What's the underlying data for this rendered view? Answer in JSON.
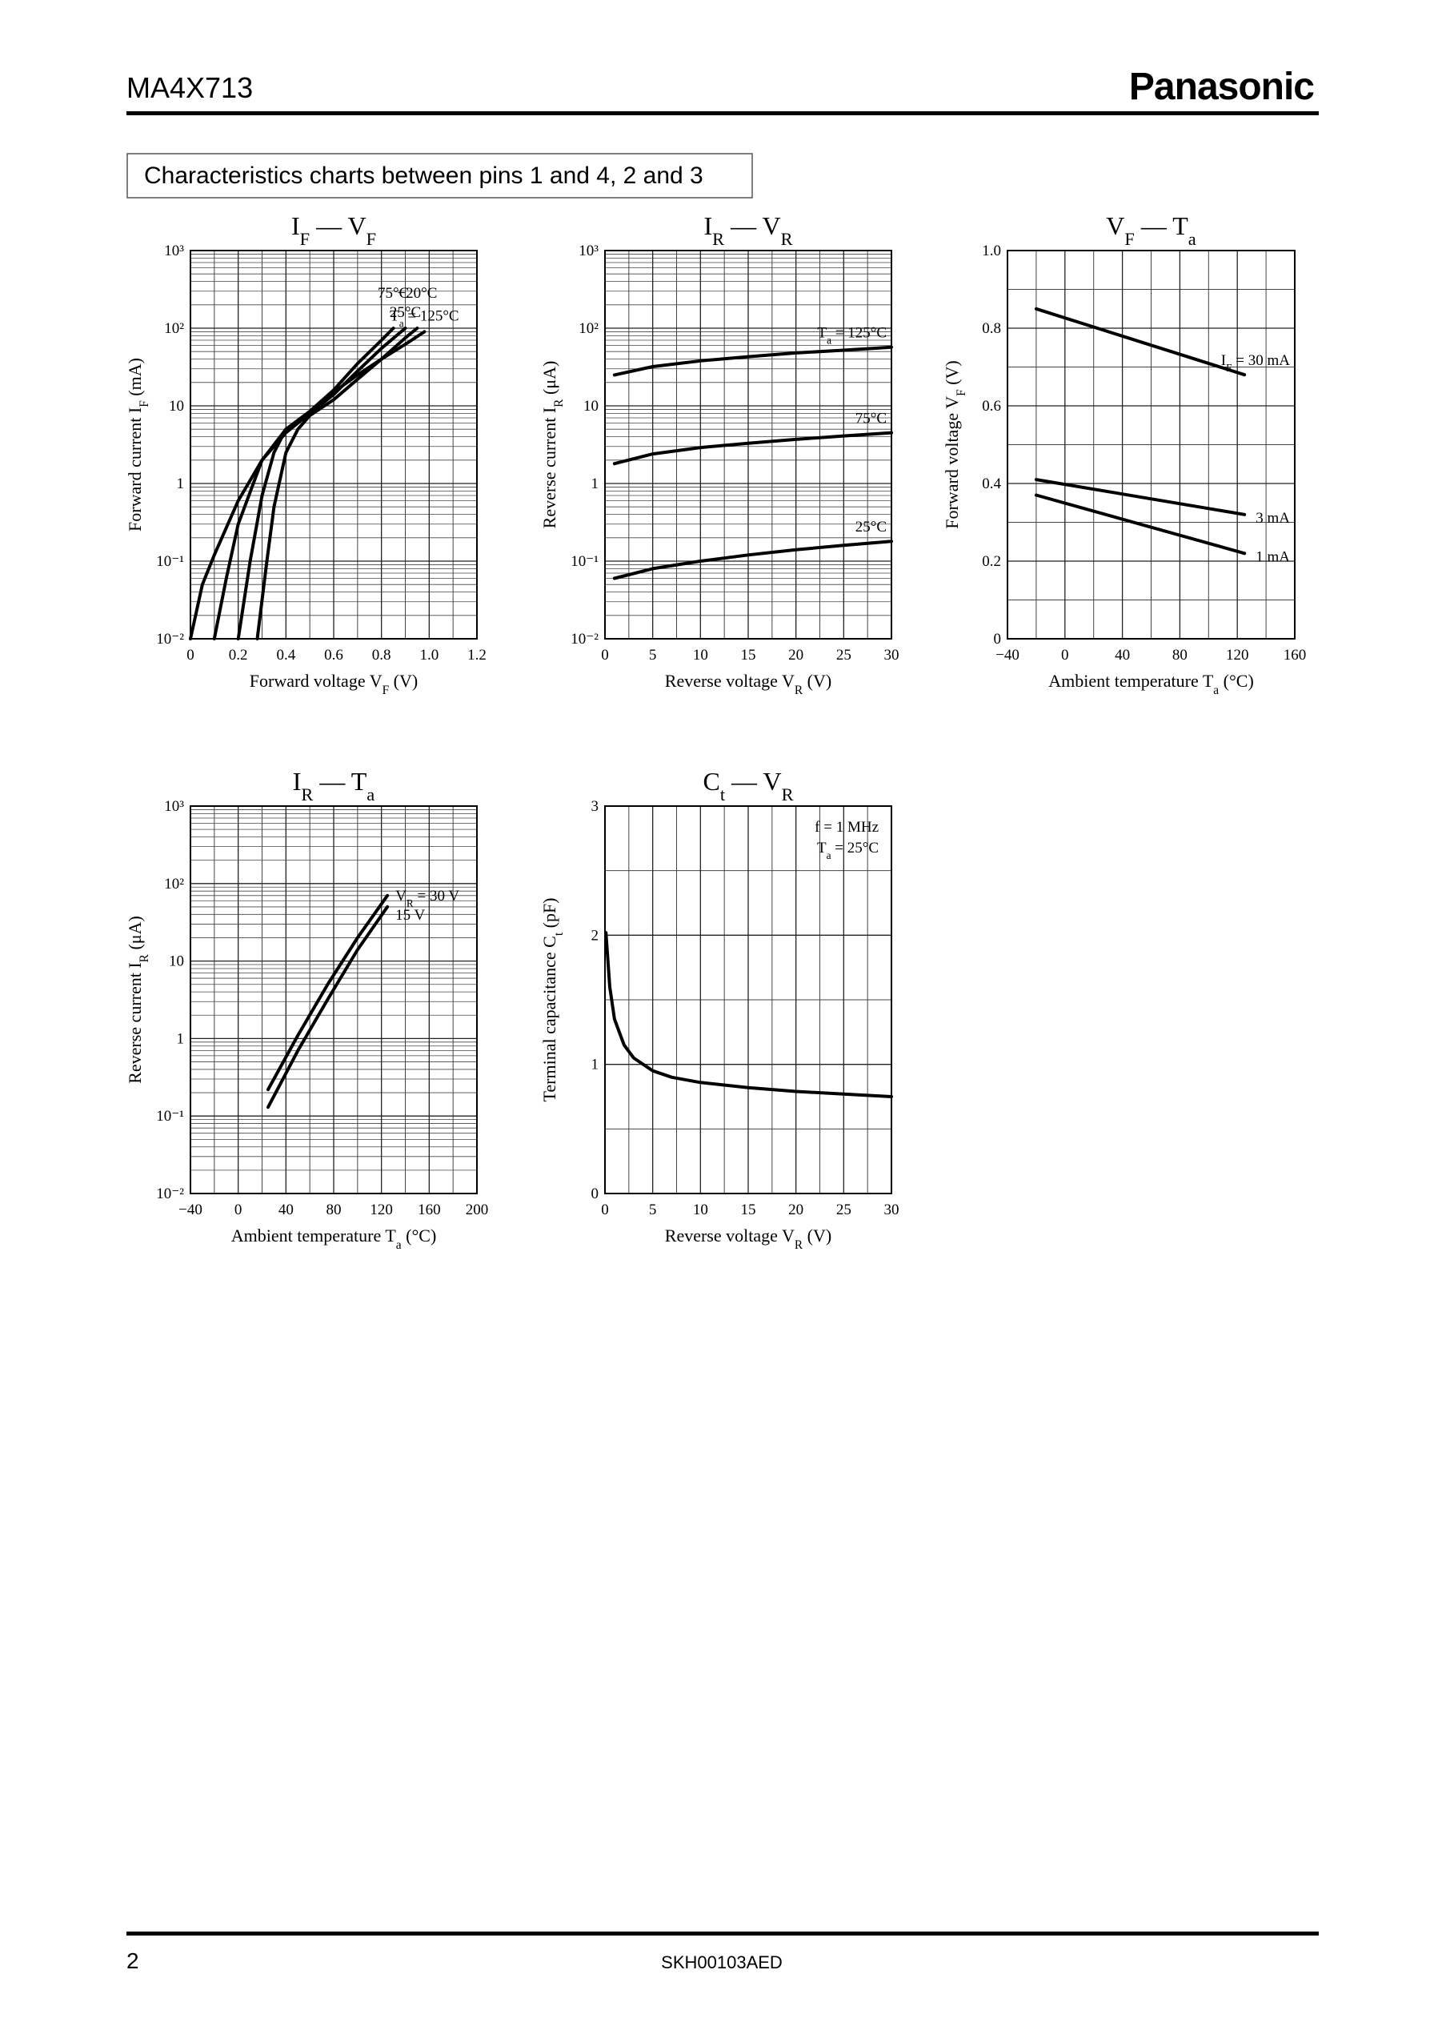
{
  "header": {
    "part": "MA4X713",
    "brand": "Panasonic"
  },
  "section": {
    "title": "Characteristics charts between pins 1 and 4, 2 and 3"
  },
  "chart_data": [
    {
      "type": "line",
      "title": [
        "I",
        "F",
        " — V",
        "F"
      ],
      "xlabel": [
        "Forward voltage  V",
        "F",
        "  (V)"
      ],
      "ylabel": [
        "Forward current  I",
        "F",
        "  (mA)"
      ],
      "xlim": [
        0,
        1.2
      ],
      "xticks": [
        0,
        0.2,
        0.4,
        0.6,
        0.8,
        {
          "value": 1,
          "label": "1.0"
        },
        1.2
      ],
      "ylim": [
        0.01,
        1000
      ],
      "yticks": [
        {
          "value": 0.01,
          "label": "10⁻²"
        },
        {
          "value": 0.1,
          "label": "10⁻¹"
        },
        1,
        10,
        {
          "value": 100,
          "label": "10²"
        },
        {
          "value": 1000,
          "label": "10³"
        }
      ],
      "log_y": true,
      "grid": true,
      "series": [
        {
          "name": [
            "T",
            "a",
            " = 125°C"
          ],
          "color": "#000000",
          "x": [
            0,
            0.05,
            0.1,
            0.2,
            0.3,
            0.4,
            0.5,
            0.6,
            0.7,
            0.8,
            0.9,
            0.98
          ],
          "values": [
            0.01,
            0.05,
            0.12,
            0.6,
            2,
            4.5,
            8,
            15,
            25,
            40,
            62,
            90
          ]
        },
        {
          "name": "75°C",
          "color": "#000000",
          "x": [
            0.1,
            0.15,
            0.2,
            0.3,
            0.4,
            0.5,
            0.6,
            0.7,
            0.8,
            0.85
          ],
          "values": [
            0.01,
            0.06,
            0.3,
            2,
            5,
            8.5,
            16,
            35,
            70,
            100
          ]
        },
        {
          "name": "25°C",
          "color": "#000000",
          "x": [
            0.2,
            0.25,
            0.3,
            0.35,
            0.4,
            0.5,
            0.6,
            0.7,
            0.8,
            0.9
          ],
          "values": [
            0.01,
            0.1,
            0.7,
            2.5,
            5,
            8,
            14,
            28,
            55,
            100
          ]
        },
        {
          "name": "−20°C",
          "color": "#000000",
          "x": [
            0.28,
            0.32,
            0.35,
            0.4,
            0.45,
            0.5,
            0.6,
            0.7,
            0.8,
            0.9,
            0.95
          ],
          "values": [
            0.01,
            0.1,
            0.5,
            2.5,
            5,
            7.5,
            12,
            22,
            40,
            75,
            100
          ]
        }
      ]
    },
    {
      "type": "line",
      "title": [
        "I",
        "R",
        " — V",
        "R"
      ],
      "xlabel": [
        "Reverse voltage  V",
        "R",
        "  (V)"
      ],
      "ylabel": [
        "Reverse current  I",
        "R",
        "  (μA)"
      ],
      "xlim": [
        0,
        30
      ],
      "xticks": [
        0,
        5,
        10,
        15,
        20,
        25,
        30
      ],
      "ylim": [
        0.01,
        1000
      ],
      "yticks": [
        {
          "value": 0.01,
          "label": "10⁻²"
        },
        {
          "value": 0.1,
          "label": "10⁻¹"
        },
        1,
        10,
        {
          "value": 100,
          "label": "10²"
        },
        {
          "value": 1000,
          "label": "10³"
        }
      ],
      "log_y": true,
      "grid": true,
      "series": [
        {
          "name": [
            "T",
            "a",
            " = 125°C"
          ],
          "color": "#000000",
          "x": [
            1,
            5,
            10,
            15,
            20,
            25,
            30
          ],
          "values": [
            25,
            32,
            38,
            43,
            48,
            52,
            57
          ]
        },
        {
          "name": "75°C",
          "color": "#000000",
          "x": [
            1,
            5,
            10,
            15,
            20,
            25,
            30
          ],
          "values": [
            1.8,
            2.4,
            2.9,
            3.3,
            3.7,
            4.1,
            4.5
          ]
        },
        {
          "name": "25°C",
          "color": "#000000",
          "x": [
            1,
            5,
            10,
            15,
            20,
            25,
            30
          ],
          "values": [
            0.06,
            0.08,
            0.1,
            0.12,
            0.14,
            0.16,
            0.18
          ]
        }
      ]
    },
    {
      "type": "line",
      "title": [
        "V",
        "F",
        " — T",
        "a"
      ],
      "xlabel": [
        "Ambient temperature  T",
        "a",
        "  (°C)"
      ],
      "ylabel": [
        "Forward voltage  V",
        "F",
        "  (V)"
      ],
      "xlim": [
        -40,
        160
      ],
      "xticks": [
        {
          "value": -40,
          "label": "−40"
        },
        0,
        40,
        80,
        120,
        160
      ],
      "ylim": [
        0,
        1
      ],
      "yticks": [
        0,
        0.2,
        0.4,
        0.6,
        0.8,
        {
          "value": 1,
          "label": "1.0"
        }
      ],
      "log_y": false,
      "grid": true,
      "series": [
        {
          "name": [
            "I",
            "F",
            " = 30 mA"
          ],
          "color": "#000000",
          "x": [
            -20,
            125
          ],
          "values": [
            0.85,
            0.68
          ]
        },
        {
          "name": "3 mA",
          "color": "#000000",
          "x": [
            -20,
            125
          ],
          "values": [
            0.41,
            0.32
          ]
        },
        {
          "name": "1 mA",
          "color": "#000000",
          "x": [
            -20,
            125
          ],
          "values": [
            0.37,
            0.22
          ]
        }
      ]
    },
    {
      "type": "line",
      "title": [
        "I",
        "R",
        " — T",
        "a"
      ],
      "xlabel": [
        "Ambient temperature  T",
        "a",
        "  (°C)"
      ],
      "ylabel": [
        "Reverse current  I",
        "R",
        "  (μA)"
      ],
      "xlim": [
        -40,
        200
      ],
      "xticks": [
        {
          "value": -40,
          "label": "−40"
        },
        0,
        40,
        80,
        120,
        160,
        200
      ],
      "ylim": [
        0.01,
        1000
      ],
      "yticks": [
        {
          "value": 0.01,
          "label": "10⁻²"
        },
        {
          "value": 0.1,
          "label": "10⁻¹"
        },
        1,
        10,
        {
          "value": 100,
          "label": "10²"
        },
        {
          "value": 1000,
          "label": "10³"
        }
      ],
      "log_y": true,
      "grid": true,
      "series": [
        {
          "name": [
            "V",
            "R",
            " = 30 V"
          ],
          "color": "#000000",
          "x": [
            25,
            50,
            75,
            100,
            125
          ],
          "values": [
            0.22,
            1.1,
            5,
            20,
            70
          ]
        },
        {
          "name": "15 V",
          "color": "#000000",
          "x": [
            25,
            50,
            75,
            100,
            125
          ],
          "values": [
            0.13,
            0.7,
            3.2,
            14,
            50
          ]
        }
      ]
    },
    {
      "type": "line",
      "title": [
        "C",
        "t",
        " — V",
        "R"
      ],
      "xlabel": [
        "Reverse voltage  V",
        "R",
        "  (V)"
      ],
      "ylabel": [
        "Terminal capacitance  C",
        "t",
        "  (pF)"
      ],
      "xlim": [
        0,
        30
      ],
      "xticks": [
        0,
        5,
        10,
        15,
        20,
        25,
        30
      ],
      "ylim": [
        0,
        3
      ],
      "yticks": [
        0,
        1,
        2,
        3
      ],
      "log_y": false,
      "grid": true,
      "annotations": [
        "f = 1 MHz",
        [
          "T",
          "a",
          " = 25°C"
        ]
      ],
      "series": [
        {
          "color": "#000000",
          "x": [
            0.1,
            0.5,
            1,
            2,
            3,
            5,
            7,
            10,
            15,
            20,
            25,
            30
          ],
          "values": [
            2.02,
            1.6,
            1.35,
            1.15,
            1.05,
            0.95,
            0.9,
            0.86,
            0.82,
            0.79,
            0.77,
            0.75
          ]
        }
      ]
    }
  ],
  "footer": {
    "page": "2",
    "code": "SKH00103AED"
  }
}
